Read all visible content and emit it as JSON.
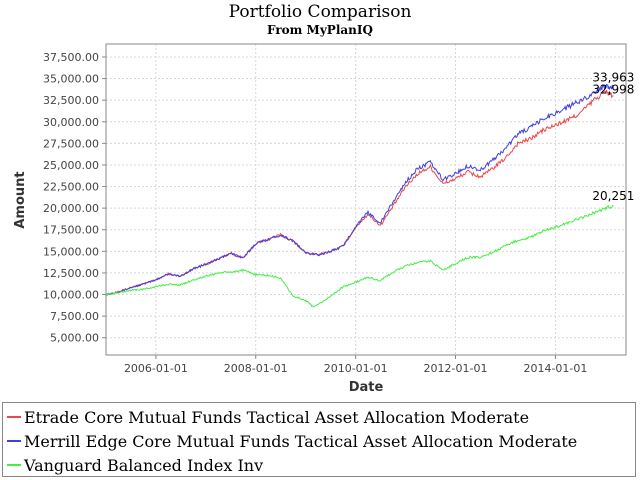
{
  "chart_data": {
    "type": "line",
    "title": "Portfolio Comparison",
    "subtitle": "From MyPlanIQ",
    "xlabel": "Date",
    "ylabel": "Amount",
    "x_ticks": [
      "2006-01-01",
      "2008-01-01",
      "2010-01-01",
      "2012-01-01",
      "2014-01-01"
    ],
    "y_ticks": [
      "5,000.00",
      "7,500.00",
      "10,000.00",
      "12,500.00",
      "15,000.00",
      "17,500.00",
      "20,000.00",
      "22,500.00",
      "25,000.00",
      "27,500.00",
      "30,000.00",
      "32,500.00",
      "35,000.00",
      "37,500.00"
    ],
    "xlim": [
      "2005-01-01",
      "2015-06-01"
    ],
    "ylim": [
      3000,
      39000
    ],
    "grid": true,
    "legend_position": "bottom",
    "series": [
      {
        "name": "Etrade Core Mutual Funds Tactical Asset Allocation Moderate",
        "color": "#e8484a",
        "end_label": "32,998",
        "points": [
          [
            "2005-01-01",
            10000
          ],
          [
            "2005-04-01",
            10300
          ],
          [
            "2005-07-01",
            10800
          ],
          [
            "2005-10-01",
            11200
          ],
          [
            "2006-01-01",
            11700
          ],
          [
            "2006-04-01",
            12400
          ],
          [
            "2006-07-01",
            12100
          ],
          [
            "2006-10-01",
            13000
          ],
          [
            "2007-01-01",
            13500
          ],
          [
            "2007-04-01",
            14100
          ],
          [
            "2007-07-01",
            14800
          ],
          [
            "2007-10-01",
            14200
          ],
          [
            "2008-01-01",
            15900
          ],
          [
            "2008-04-01",
            16400
          ],
          [
            "2008-07-01",
            16900
          ],
          [
            "2008-10-01",
            16200
          ],
          [
            "2009-01-01",
            14800
          ],
          [
            "2009-04-01",
            14600
          ],
          [
            "2009-07-01",
            15000
          ],
          [
            "2009-10-01",
            15600
          ],
          [
            "2010-01-01",
            17800
          ],
          [
            "2010-04-01",
            19300
          ],
          [
            "2010-07-01",
            18000
          ],
          [
            "2010-10-01",
            20200
          ],
          [
            "2011-01-01",
            22500
          ],
          [
            "2011-04-01",
            24000
          ],
          [
            "2011-07-01",
            24800
          ],
          [
            "2011-10-01",
            22800
          ],
          [
            "2012-01-01",
            23400
          ],
          [
            "2012-04-01",
            24200
          ],
          [
            "2012-07-01",
            23600
          ],
          [
            "2012-10-01",
            24600
          ],
          [
            "2013-01-01",
            25800
          ],
          [
            "2013-04-01",
            27500
          ],
          [
            "2013-07-01",
            28000
          ],
          [
            "2013-10-01",
            29000
          ],
          [
            "2014-01-01",
            29600
          ],
          [
            "2014-04-01",
            30200
          ],
          [
            "2014-07-01",
            31000
          ],
          [
            "2014-10-01",
            32400
          ],
          [
            "2015-01-01",
            33500
          ],
          [
            "2015-03-01",
            32998
          ]
        ]
      },
      {
        "name": "Merrill Edge Core Mutual Funds Tactical Asset Allocation Moderate",
        "color": "#4040e0",
        "end_label": "33,963",
        "points": [
          [
            "2005-01-01",
            10000
          ],
          [
            "2005-04-01",
            10300
          ],
          [
            "2005-07-01",
            10800
          ],
          [
            "2005-10-01",
            11200
          ],
          [
            "2006-01-01",
            11700
          ],
          [
            "2006-04-01",
            12400
          ],
          [
            "2006-07-01",
            12100
          ],
          [
            "2006-10-01",
            13000
          ],
          [
            "2007-01-01",
            13500
          ],
          [
            "2007-04-01",
            14100
          ],
          [
            "2007-07-01",
            14800
          ],
          [
            "2007-10-01",
            14200
          ],
          [
            "2008-01-01",
            15900
          ],
          [
            "2008-04-01",
            16400
          ],
          [
            "2008-07-01",
            16900
          ],
          [
            "2008-10-01",
            16200
          ],
          [
            "2009-01-01",
            14800
          ],
          [
            "2009-04-01",
            14600
          ],
          [
            "2009-07-01",
            15000
          ],
          [
            "2009-10-01",
            15600
          ],
          [
            "2010-01-01",
            17900
          ],
          [
            "2010-04-01",
            19500
          ],
          [
            "2010-07-01",
            18300
          ],
          [
            "2010-10-01",
            20700
          ],
          [
            "2011-01-01",
            23000
          ],
          [
            "2011-04-01",
            24600
          ],
          [
            "2011-07-01",
            25300
          ],
          [
            "2011-10-01",
            23300
          ],
          [
            "2012-01-01",
            24000
          ],
          [
            "2012-04-01",
            24900
          ],
          [
            "2012-07-01",
            24400
          ],
          [
            "2012-10-01",
            25600
          ],
          [
            "2013-01-01",
            26900
          ],
          [
            "2013-04-01",
            28600
          ],
          [
            "2013-07-01",
            29300
          ],
          [
            "2013-10-01",
            30300
          ],
          [
            "2014-01-01",
            31000
          ],
          [
            "2014-04-01",
            31700
          ],
          [
            "2014-07-01",
            32400
          ],
          [
            "2014-10-01",
            33300
          ],
          [
            "2015-01-01",
            34200
          ],
          [
            "2015-03-01",
            33963
          ]
        ]
      },
      {
        "name": "Vanguard Balanced Index Inv",
        "color": "#44ee44",
        "end_label": "20,251",
        "points": [
          [
            "2005-01-01",
            10000
          ],
          [
            "2005-04-01",
            10200
          ],
          [
            "2005-07-01",
            10500
          ],
          [
            "2005-10-01",
            10600
          ],
          [
            "2006-01-01",
            10900
          ],
          [
            "2006-04-01",
            11200
          ],
          [
            "2006-07-01",
            11100
          ],
          [
            "2006-10-01",
            11700
          ],
          [
            "2007-01-01",
            12100
          ],
          [
            "2007-04-01",
            12500
          ],
          [
            "2007-07-01",
            12600
          ],
          [
            "2007-10-01",
            12800
          ],
          [
            "2008-01-01",
            12300
          ],
          [
            "2008-04-01",
            12200
          ],
          [
            "2008-07-01",
            11900
          ],
          [
            "2008-10-01",
            9800
          ],
          [
            "2009-01-01",
            9300
          ],
          [
            "2009-03-01",
            8500
          ],
          [
            "2009-07-01",
            9800
          ],
          [
            "2009-10-01",
            10900
          ],
          [
            "2010-01-01",
            11400
          ],
          [
            "2010-04-01",
            12000
          ],
          [
            "2010-07-01",
            11600
          ],
          [
            "2010-10-01",
            12600
          ],
          [
            "2011-01-01",
            13300
          ],
          [
            "2011-04-01",
            13700
          ],
          [
            "2011-07-01",
            13900
          ],
          [
            "2011-10-01",
            12800
          ],
          [
            "2012-01-01",
            13600
          ],
          [
            "2012-04-01",
            14300
          ],
          [
            "2012-07-01",
            14300
          ],
          [
            "2012-10-01",
            14900
          ],
          [
            "2013-01-01",
            15600
          ],
          [
            "2013-04-01",
            16300
          ],
          [
            "2013-07-01",
            16600
          ],
          [
            "2013-10-01",
            17300
          ],
          [
            "2014-01-01",
            17800
          ],
          [
            "2014-04-01",
            18300
          ],
          [
            "2014-07-01",
            18800
          ],
          [
            "2014-10-01",
            19400
          ],
          [
            "2015-01-01",
            20000
          ],
          [
            "2015-03-01",
            20251
          ]
        ]
      }
    ]
  }
}
